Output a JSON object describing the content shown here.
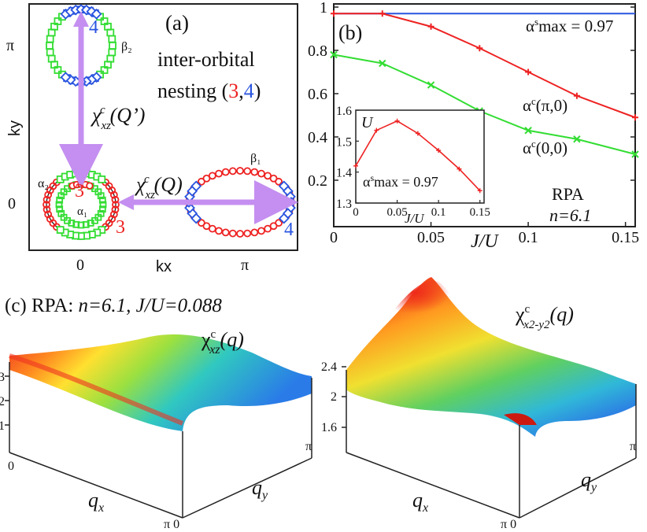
{
  "colors": {
    "red": "#ee2222",
    "green": "#33dd33",
    "blue": "#2a55e0",
    "violet": "#c48ff0",
    "dark": "#111111"
  },
  "panel_a": {
    "tag": "(a)",
    "ky": "ky",
    "kx": "kx",
    "ytick_pi": "π",
    "ytick_0": "0",
    "xtick_0": "0",
    "xtick_pi": "π",
    "title_line1": "inter-orbital",
    "title_line2_pre": "nesting (",
    "title_3": "3",
    "title_comma": ",",
    "title_4": "4",
    "title_close": ")",
    "chi_q_prime": "χxzc(Q’)",
    "chi_q": "χxzc(Q)",
    "label_beta2": "β₂",
    "label_beta1": "β₁",
    "label_alpha2": "α₂",
    "label_alpha1": "α₁",
    "num3_top": "3",
    "num3_bottom": "3",
    "num4_top": "4",
    "num4_right": "4"
  },
  "panel_b": {
    "tag": "(b)",
    "rpa": "RPA",
    "n_label": "n=6.1",
    "xlabel": "J/U",
    "label_smax": "αsmax = 0.97",
    "label_pi0": "αc(π,0)",
    "label_00": "αc(0,0)",
    "inset": {
      "ylabel": "U",
      "xlabel": "J/U",
      "label": "αsmax = 0.97"
    }
  },
  "panel_c": {
    "tag_prefix": "(c) RPA: ",
    "tag_n": "n=6.1, J/U=0.088",
    "left_title": "χxzc(q)",
    "right_title": "χx2-y2c(q)",
    "left_zticks": [
      "3",
      "2",
      "1"
    ],
    "right_zticks": [
      "2.4",
      "2",
      "1.6"
    ],
    "qx": "qx",
    "qy": "qy",
    "axis_0": "0",
    "axis_pi": "π",
    "axis_pi0": "π 0"
  },
  "chart_data": [
    {
      "type": "line",
      "title": "(b)",
      "xlabel": "J/U",
      "ylabel": "",
      "xlim": [
        0,
        0.155
      ],
      "ylim": [
        0,
        1
      ],
      "xticks": [
        0,
        0.05,
        0.1,
        0.15
      ],
      "yticks": [
        0.2,
        0.4,
        0.6,
        0.8,
        1
      ],
      "series": [
        {
          "name": "αsmax = 0.97",
          "color": "#2a55e0",
          "x": [
            0,
            0.155
          ],
          "y": [
            0.97,
            0.97
          ]
        },
        {
          "name": "αc(π,0)",
          "color": "#ee2222",
          "x": [
            0,
            0.025,
            0.05,
            0.075,
            0.1,
            0.125,
            0.155
          ],
          "y": [
            0.97,
            0.97,
            0.91,
            0.81,
            0.7,
            0.59,
            0.49
          ]
        },
        {
          "name": "αc(0,0)",
          "color": "#33dd33",
          "x": [
            0,
            0.025,
            0.05,
            0.075,
            0.1,
            0.125,
            0.155
          ],
          "y": [
            0.78,
            0.74,
            0.64,
            0.52,
            0.43,
            0.39,
            0.32
          ]
        }
      ]
    },
    {
      "type": "line",
      "title": "inset",
      "xlabel": "J/U",
      "ylabel": "U",
      "xlim": [
        0,
        0.155
      ],
      "ylim": [
        1.3,
        1.6
      ],
      "xticks": [
        0,
        0.05,
        0.1,
        0.15
      ],
      "yticks": [
        1.3,
        1.4,
        1.5,
        1.6
      ],
      "series": [
        {
          "name": "U",
          "color": "#ee2222",
          "x": [
            0,
            0.025,
            0.05,
            0.075,
            0.1,
            0.125,
            0.15
          ],
          "y": [
            1.42,
            1.535,
            1.565,
            1.525,
            1.47,
            1.41,
            1.34
          ]
        }
      ]
    }
  ]
}
